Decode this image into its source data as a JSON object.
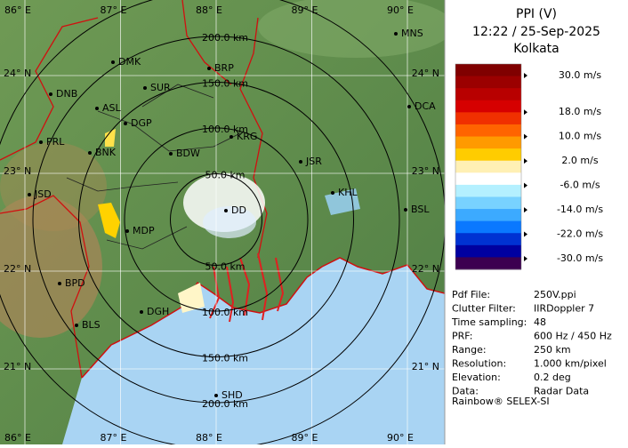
{
  "title": {
    "product": "PPI (V)",
    "time": "12:22 / 25-Sep-2025",
    "site": "Kolkata"
  },
  "map": {
    "longitudes": [
      {
        "value": 86,
        "label": "86° E"
      },
      {
        "value": 87,
        "label": "87° E"
      },
      {
        "value": 88,
        "label": "88° E"
      },
      {
        "value": 89,
        "label": "89° E"
      },
      {
        "value": 90,
        "label": "90° E"
      }
    ],
    "latitudes": [
      {
        "value": 24,
        "label": "24° N"
      },
      {
        "value": 23,
        "label": "23° N"
      },
      {
        "value": 22,
        "label": "22° N"
      },
      {
        "value": 21,
        "label": "21° N"
      }
    ],
    "range_rings": [
      {
        "value": 50,
        "label": "50.0 km"
      },
      {
        "value": 100,
        "label": "100.0 km"
      },
      {
        "value": 150,
        "label": "150.0 km"
      },
      {
        "value": 200,
        "label": "200.0 km"
      },
      250
    ],
    "stations": [
      "MNS",
      "DMK",
      "BRP",
      "DNB",
      "SUR",
      "ASL",
      "DCA",
      "DGP",
      "KRG",
      "PRL",
      "BNK",
      "BDW",
      "JSR",
      "KHL",
      "JSD",
      "DD",
      "BSL",
      "MDP",
      "BPD",
      "DGH",
      "BLS",
      "SHD"
    ]
  },
  "legend": {
    "colors": [
      "#800000",
      "#9b0000",
      "#b80000",
      "#d60000",
      "#f03000",
      "#ff6400",
      "#ff9a00",
      "#ffcc00",
      "#fff0b4",
      "#ffffff",
      "#b4f0ff",
      "#78d2ff",
      "#3caaff",
      "#0a78ff",
      "#0032d2",
      "#0000a0",
      "#3c0050"
    ],
    "ticks": [
      {
        "value": 30,
        "label": "30.0 m/s"
      },
      {
        "value": 18,
        "label": "18.0 m/s"
      },
      {
        "value": 10,
        "label": "10.0 m/s"
      },
      {
        "value": 2,
        "label": "2.0 m/s"
      },
      {
        "value": -6,
        "label": "-6.0 m/s"
      },
      {
        "value": -14,
        "label": "-14.0 m/s"
      },
      {
        "value": -22,
        "label": "-22.0 m/s"
      },
      {
        "value": -30,
        "label": "-30.0 m/s"
      }
    ]
  },
  "info": {
    "rows": [
      [
        "Pdf File:",
        "250V.ppi"
      ],
      [
        "Clutter Filter:",
        "IIRDoppler 7"
      ],
      [
        "Time sampling:",
        "48"
      ],
      [
        "PRF:",
        "600 Hz / 450 Hz"
      ],
      [
        "Range:",
        "250 km"
      ],
      [
        "Resolution:",
        "1.000 km/pixel"
      ],
      [
        "Elevation:",
        "0.2 deg"
      ],
      [
        "Data:",
        "Radar Data"
      ]
    ],
    "footer": "Rainbow® SELEX-SI"
  }
}
